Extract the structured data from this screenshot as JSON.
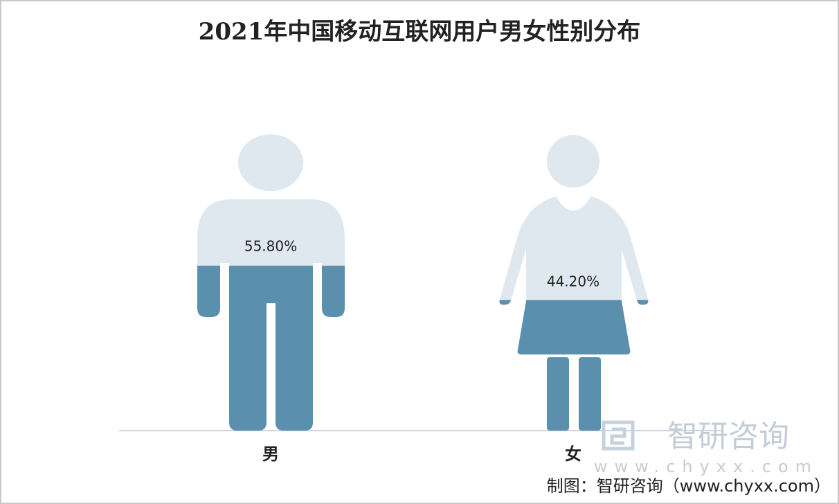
{
  "chart_data": {
    "type": "pictograph",
    "title": "2021年中国移动互联网用户男女性别分布",
    "categories": [
      "男",
      "女"
    ],
    "values": [
      55.8,
      44.2
    ],
    "value_labels": [
      "55.80%",
      "44.20%"
    ],
    "color": "#5b8fae",
    "base_color": "#dfe7ef",
    "watermark": {
      "name": "智研咨询",
      "url": "www.chyxx.com"
    },
    "source": "制图：智研咨询（www.chyxx.com）"
  }
}
